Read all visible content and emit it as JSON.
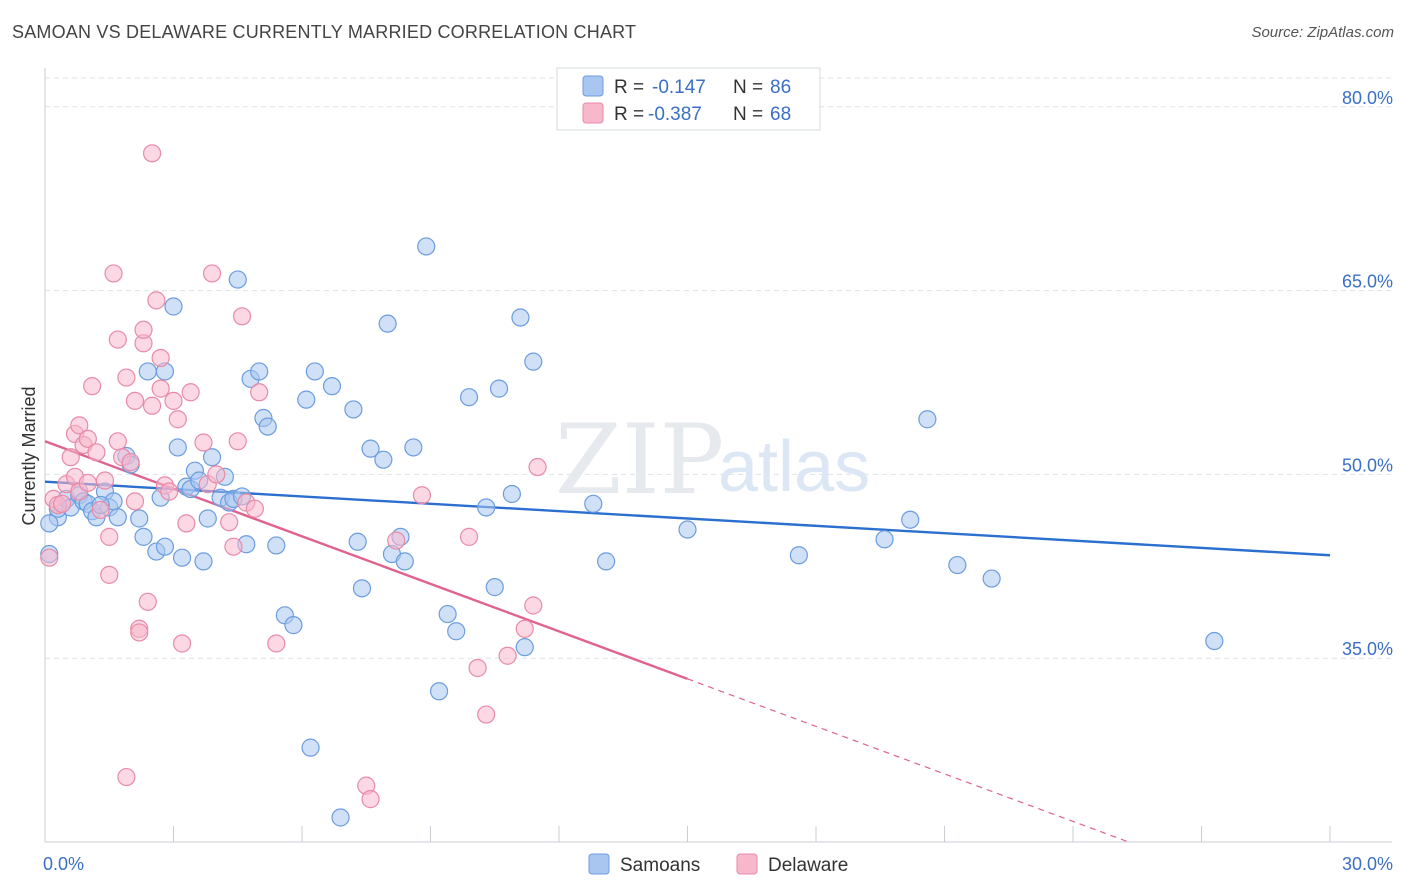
{
  "title": "SAMOAN VS DELAWARE CURRENTLY MARRIED CORRELATION CHART",
  "source": "Source: ZipAtlas.com",
  "watermark": {
    "zip": "ZIP",
    "atlas": "atlas"
  },
  "colors": {
    "samoans_fill": "#a9c6f0",
    "samoans_stroke": "#6b9ddf",
    "samoans_line": "#2b6fcf",
    "delaware_fill": "#f7b8cc",
    "delaware_stroke": "#e98aa8",
    "delaware_line": "#e0628f",
    "grid": "#dde3ea",
    "axis_text": "#3b6fc4"
  },
  "legend": {
    "rows": [
      {
        "r_label": "R =",
        "r_value": "-0.147",
        "n_label": "N =",
        "n_value": "86"
      },
      {
        "r_label": "R =",
        "r_value": "-0.387",
        "n_label": "N =",
        "n_value": "68"
      }
    ]
  },
  "chart_data": {
    "type": "scatter",
    "title": "SAMOAN VS DELAWARE CURRENTLY MARRIED CORRELATION CHART",
    "xlabel": "",
    "ylabel": "Currently Married",
    "xlim": [
      0,
      30
    ],
    "ylim": [
      20,
      83
    ],
    "x_tick_labels": [
      "0.0%",
      "30.0%"
    ],
    "y_ticks": [
      35,
      50,
      65,
      80
    ],
    "y_tick_labels": [
      "35.0%",
      "50.0%",
      "65.0%",
      "80.0%"
    ],
    "grid": true,
    "legend_placement": "top-center",
    "series": [
      {
        "name": "Samoans",
        "r": -0.147,
        "n": 86,
        "trend": {
          "x": [
            0,
            30
          ],
          "y": [
            49.4,
            43.4
          ],
          "solid_until": 30
        },
        "points": [
          [
            0.1,
            43.5
          ],
          [
            0.3,
            46.5
          ],
          [
            0.3,
            47.2
          ],
          [
            0.5,
            48.0
          ],
          [
            0.6,
            47.3
          ],
          [
            0.8,
            48.3
          ],
          [
            0.9,
            47.8
          ],
          [
            1.0,
            47.6
          ],
          [
            1.1,
            47.0
          ],
          [
            1.2,
            46.5
          ],
          [
            1.4,
            48.6
          ],
          [
            1.5,
            47.3
          ],
          [
            1.6,
            47.8
          ],
          [
            1.7,
            46.5
          ],
          [
            1.9,
            51.5
          ],
          [
            2.0,
            50.8
          ],
          [
            2.2,
            46.4
          ],
          [
            2.3,
            44.9
          ],
          [
            2.4,
            58.4
          ],
          [
            2.6,
            43.7
          ],
          [
            2.7,
            48.1
          ],
          [
            2.8,
            44.1
          ],
          [
            2.8,
            58.4
          ],
          [
            3.0,
            63.7
          ],
          [
            3.1,
            52.2
          ],
          [
            3.2,
            43.2
          ],
          [
            3.3,
            49.0
          ],
          [
            3.4,
            48.8
          ],
          [
            3.5,
            50.3
          ],
          [
            3.6,
            49.5
          ],
          [
            3.7,
            42.9
          ],
          [
            3.8,
            46.4
          ],
          [
            3.9,
            51.4
          ],
          [
            4.1,
            48.1
          ],
          [
            4.2,
            49.8
          ],
          [
            4.3,
            47.7
          ],
          [
            4.4,
            48.0
          ],
          [
            4.5,
            65.9
          ],
          [
            4.6,
            48.2
          ],
          [
            4.7,
            44.3
          ],
          [
            4.8,
            57.8
          ],
          [
            5.0,
            58.4
          ],
          [
            5.1,
            54.6
          ],
          [
            5.2,
            53.9
          ],
          [
            5.4,
            44.2
          ],
          [
            5.6,
            38.5
          ],
          [
            5.8,
            37.7
          ],
          [
            6.1,
            56.1
          ],
          [
            6.2,
            27.7
          ],
          [
            6.3,
            58.4
          ],
          [
            6.7,
            57.2
          ],
          [
            6.9,
            22.0
          ],
          [
            7.2,
            55.3
          ],
          [
            7.3,
            44.5
          ],
          [
            7.4,
            40.7
          ],
          [
            7.6,
            52.1
          ],
          [
            7.9,
            51.2
          ],
          [
            8.0,
            62.3
          ],
          [
            8.1,
            43.5
          ],
          [
            8.3,
            44.9
          ],
          [
            8.4,
            42.9
          ],
          [
            8.6,
            52.2
          ],
          [
            8.9,
            68.6
          ],
          [
            9.2,
            32.3
          ],
          [
            9.4,
            38.6
          ],
          [
            9.6,
            37.2
          ],
          [
            9.9,
            56.3
          ],
          [
            10.3,
            47.3
          ],
          [
            10.5,
            40.8
          ],
          [
            10.6,
            57.0
          ],
          [
            10.9,
            48.4
          ],
          [
            11.1,
            62.8
          ],
          [
            11.2,
            35.9
          ],
          [
            11.4,
            59.2
          ],
          [
            12.8,
            47.6
          ],
          [
            13.1,
            42.9
          ],
          [
            15.0,
            45.5
          ],
          [
            17.6,
            43.4
          ],
          [
            19.6,
            44.7
          ],
          [
            20.2,
            46.3
          ],
          [
            20.6,
            54.5
          ],
          [
            21.3,
            42.6
          ],
          [
            22.1,
            41.5
          ],
          [
            27.3,
            36.4
          ],
          [
            0.1,
            46.0
          ],
          [
            1.3,
            47.5
          ]
        ]
      },
      {
        "name": "Delaware",
        "r": -0.387,
        "n": 68,
        "trend": {
          "x": [
            0,
            25.3
          ],
          "y": [
            52.7,
            20.0
          ],
          "solid_until": 15.0
        },
        "points": [
          [
            0.1,
            43.2
          ],
          [
            0.2,
            48.0
          ],
          [
            0.3,
            47.5
          ],
          [
            0.4,
            47.6
          ],
          [
            0.5,
            49.2
          ],
          [
            0.6,
            51.4
          ],
          [
            0.7,
            49.8
          ],
          [
            0.7,
            53.3
          ],
          [
            0.8,
            48.6
          ],
          [
            0.8,
            54.0
          ],
          [
            0.9,
            52.4
          ],
          [
            1.0,
            49.3
          ],
          [
            1.0,
            52.9
          ],
          [
            1.1,
            57.2
          ],
          [
            1.2,
            51.8
          ],
          [
            1.3,
            47.1
          ],
          [
            1.4,
            49.5
          ],
          [
            1.5,
            41.8
          ],
          [
            1.5,
            44.9
          ],
          [
            1.6,
            66.4
          ],
          [
            1.7,
            52.7
          ],
          [
            1.7,
            61.0
          ],
          [
            1.8,
            51.4
          ],
          [
            1.9,
            25.3
          ],
          [
            1.9,
            57.9
          ],
          [
            2.0,
            51.0
          ],
          [
            2.1,
            47.8
          ],
          [
            2.1,
            56.0
          ],
          [
            2.2,
            37.4
          ],
          [
            2.2,
            37.1
          ],
          [
            2.3,
            60.7
          ],
          [
            2.3,
            61.8
          ],
          [
            2.4,
            39.6
          ],
          [
            2.5,
            55.6
          ],
          [
            2.5,
            76.2
          ],
          [
            2.6,
            64.2
          ],
          [
            2.7,
            59.5
          ],
          [
            2.7,
            57.0
          ],
          [
            2.8,
            49.1
          ],
          [
            2.9,
            48.6
          ],
          [
            3.0,
            56.0
          ],
          [
            3.1,
            54.5
          ],
          [
            3.2,
            36.2
          ],
          [
            3.3,
            46.0
          ],
          [
            3.4,
            56.7
          ],
          [
            3.7,
            52.6
          ],
          [
            3.8,
            49.2
          ],
          [
            3.9,
            66.4
          ],
          [
            4.0,
            50.0
          ],
          [
            4.3,
            46.1
          ],
          [
            4.4,
            44.1
          ],
          [
            4.5,
            52.7
          ],
          [
            4.6,
            62.9
          ],
          [
            4.7,
            47.7
          ],
          [
            4.9,
            47.2
          ],
          [
            5.0,
            56.7
          ],
          [
            5.4,
            36.2
          ],
          [
            7.5,
            24.6
          ],
          [
            7.6,
            23.5
          ],
          [
            8.2,
            44.6
          ],
          [
            8.8,
            48.3
          ],
          [
            9.9,
            44.9
          ],
          [
            10.1,
            34.2
          ],
          [
            10.3,
            30.4
          ],
          [
            10.8,
            35.2
          ],
          [
            11.2,
            37.4
          ],
          [
            11.4,
            39.3
          ],
          [
            11.5,
            50.6
          ]
        ]
      }
    ]
  },
  "bottom_legend": [
    {
      "label": "Samoans"
    },
    {
      "label": "Delaware"
    }
  ]
}
